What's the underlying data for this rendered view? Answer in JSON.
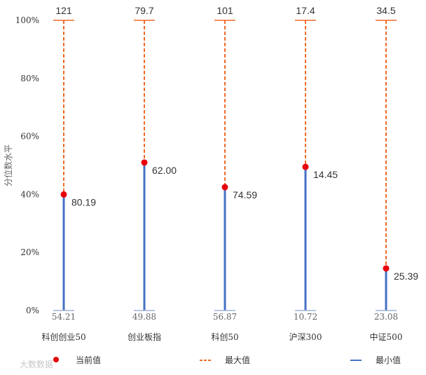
{
  "chart_data": {
    "type": "range-dot",
    "ylabel": "分位数水平",
    "ylim": [
      0,
      100
    ],
    "yticks": [
      "0%",
      "20%",
      "40%",
      "60%",
      "80%",
      "100%"
    ],
    "categories": [
      "科创创业50",
      "创业板指",
      "科创50",
      "沪深300",
      "中证500"
    ],
    "percentile": [
      40,
      51,
      42.5,
      49.5,
      14.5
    ],
    "current_labels": [
      "80.19",
      "62.00",
      "74.59",
      "14.45",
      "25.39"
    ],
    "max_labels": [
      "121",
      "79.7",
      "101",
      "17.4",
      "34.5"
    ],
    "min_labels": [
      "54.21",
      "49.88",
      "56.87",
      "10.72",
      "23.08"
    ],
    "legend": [
      "当前值",
      "最大值",
      "最小值"
    ],
    "colors": {
      "current": "#e8000b",
      "max": "#f06a28",
      "min": "#4472c4"
    }
  },
  "watermark": "大数数据"
}
